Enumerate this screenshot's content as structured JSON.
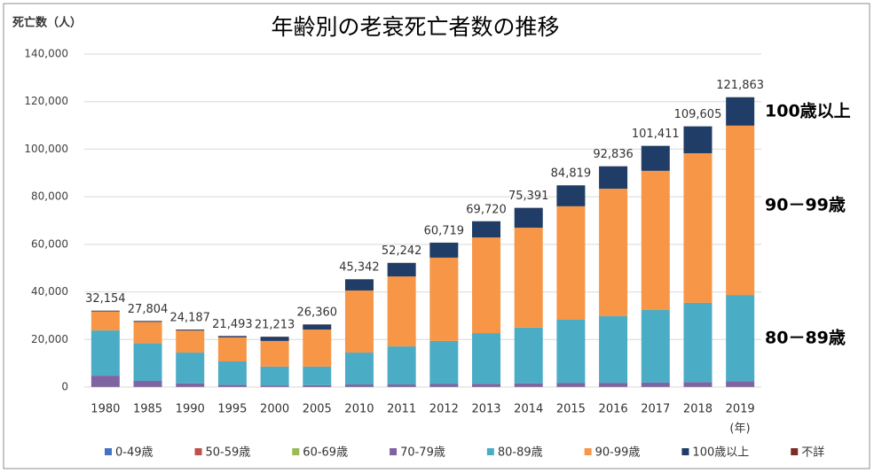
{
  "chart_data": {
    "type": "stacked_bar",
    "title": "年齢別の老衰死亡者数の推移",
    "y_label": "死亡数（人）",
    "x_unit": "(年)",
    "categories": [
      "1980",
      "1985",
      "1990",
      "1995",
      "2000",
      "2005",
      "2010",
      "2011",
      "2012",
      "2013",
      "2014",
      "2015",
      "2016",
      "2017",
      "2018",
      "2019"
    ],
    "series": [
      {
        "name": "0-49歳",
        "color": "#4472c4",
        "values": [
          20,
          20,
          20,
          20,
          20,
          20,
          20,
          20,
          20,
          20,
          20,
          20,
          20,
          20,
          20,
          20
        ]
      },
      {
        "name": "50-59歳",
        "color": "#c0504d",
        "values": [
          30,
          30,
          30,
          30,
          30,
          30,
          30,
          30,
          30,
          30,
          30,
          30,
          30,
          30,
          30,
          30
        ]
      },
      {
        "name": "60-69歳",
        "color": "#9bbb59",
        "values": [
          50,
          50,
          50,
          50,
          50,
          50,
          50,
          50,
          50,
          50,
          50,
          50,
          50,
          50,
          50,
          50
        ]
      },
      {
        "name": "70-79歳",
        "color": "#8064a2",
        "values": [
          4700,
          2500,
          1500,
          800,
          600,
          700,
          1000,
          1000,
          1200,
          1300,
          1500,
          1700,
          1700,
          1800,
          2000,
          2300
        ]
      },
      {
        "name": "80-89歳",
        "color": "#4bacc6",
        "values": [
          19000,
          15800,
          12900,
          9900,
          7900,
          7800,
          13400,
          16000,
          18100,
          21300,
          23400,
          26500,
          28000,
          30500,
          33300,
          36300
        ]
      },
      {
        "name": "90-99歳",
        "color": "#f79646",
        "values": [
          8000,
          9000,
          9270,
          10100,
          10800,
          15600,
          26100,
          29400,
          35000,
          40200,
          42000,
          47700,
          53600,
          58500,
          62900,
          71200
        ]
      },
      {
        "name": "100歳以上",
        "color": "#1f3d66",
        "values": [
          300,
          350,
          400,
          500,
          1700,
          2100,
          4700,
          5700,
          6300,
          6800,
          8300,
          8800,
          9400,
          10500,
          11300,
          11900
        ]
      },
      {
        "name": "不詳",
        "color": "#7b2c24",
        "values": [
          54,
          54,
          17,
          93,
          113,
          60,
          42,
          42,
          19,
          20,
          91,
          19,
          36,
          11,
          5,
          63
        ]
      }
    ],
    "totals": [
      32154,
      27804,
      24187,
      21493,
      21213,
      26360,
      45342,
      52242,
      60719,
      69720,
      75391,
      84819,
      92836,
      101411,
      109605,
      121863
    ],
    "total_labels": [
      "32,154",
      "27,804",
      "24,187",
      "21,493",
      "21,213",
      "26,360",
      "45,342",
      "52,242",
      "60,719",
      "69,720",
      "75,391",
      "84,819",
      "92,836",
      "101,411",
      "109,605",
      "121,863"
    ],
    "ylim": [
      0,
      140000
    ],
    "yticks": [
      0,
      {
        "value": 20000,
        "label": "20,000"
      },
      {
        "value": 40000,
        "label": "40,000"
      },
      {
        "value": 60000,
        "label": "60,000"
      },
      {
        "value": 80000,
        "label": "80,000"
      },
      {
        "value": 100000,
        "label": "100,000"
      },
      {
        "value": 120000,
        "label": "120,000"
      },
      {
        "value": 140000,
        "label": "140,000"
      }
    ],
    "grid": true,
    "annotations": [
      "100歳以上",
      "90－99歳",
      "80－89歳"
    ]
  }
}
